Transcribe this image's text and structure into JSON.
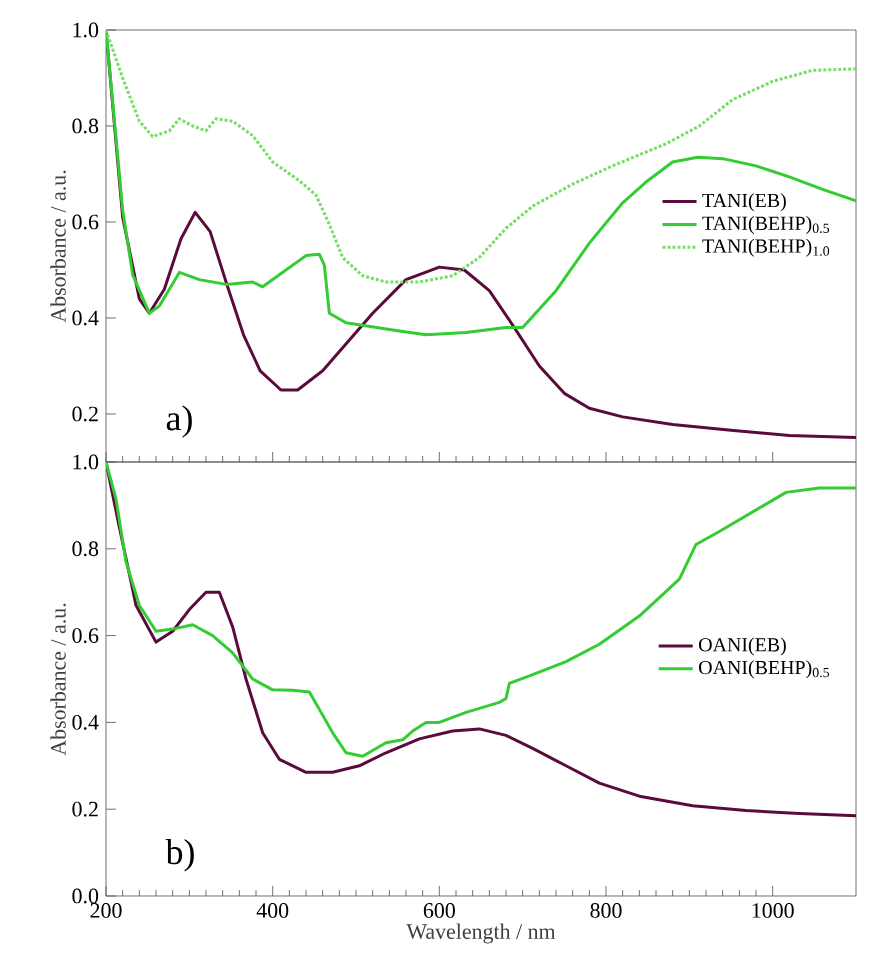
{
  "chart_data": [
    {
      "type": "line",
      "ylabel": "Absorbance / a.u.",
      "annotations": [
        "a)"
      ],
      "xlim": [
        200,
        1100
      ],
      "xticks": [
        200,
        400,
        600,
        800,
        1000
      ],
      "ylim": [
        0.1,
        1.0
      ],
      "yticks": [
        {
          "value": 0.2,
          "label": "0.2"
        },
        {
          "value": 0.4,
          "label": "0.4"
        },
        {
          "value": 0.6,
          "label": "0.6"
        },
        {
          "value": 0.8,
          "label": "0.8"
        },
        {
          "value": 1.0,
          "label": "1.0"
        }
      ],
      "tick_labels": "y",
      "legend": "right",
      "series": [
        {
          "name": "TANI(EB)",
          "color": "#5a0a3c",
          "line_style": "solid",
          "x": [
            200,
            220,
            240,
            252,
            270,
            290,
            307,
            325,
            345,
            365,
            385,
            410,
            430,
            460,
            490,
            520,
            560,
            600,
            630,
            660,
            690,
            720,
            750,
            780,
            820,
            880,
            950,
            1020,
            1100
          ],
          "values": [
            1.0,
            0.61,
            0.44,
            0.41,
            0.46,
            0.565,
            0.62,
            0.58,
            0.47,
            0.365,
            0.29,
            0.25,
            0.25,
            0.29,
            0.35,
            0.41,
            0.48,
            0.506,
            0.5,
            0.457,
            0.38,
            0.3,
            0.243,
            0.212,
            0.194,
            0.178,
            0.166,
            0.155,
            0.151
          ]
        },
        {
          "name": "TANI(BEHP)$_{0.5}$",
          "color": "#33cc33",
          "line_style": "solid",
          "x": [
            200,
            220,
            232,
            252,
            264,
            288,
            312,
            344,
            376,
            388,
            408,
            440,
            456,
            462,
            468,
            488,
            552,
            584,
            632,
            680,
            700,
            740,
            780,
            820,
            850,
            880,
            910,
            940,
            980,
            1020,
            1060,
            1100
          ],
          "values": [
            1.0,
            0.625,
            0.49,
            0.41,
            0.425,
            0.495,
            0.48,
            0.47,
            0.475,
            0.465,
            0.49,
            0.53,
            0.533,
            0.51,
            0.41,
            0.39,
            0.373,
            0.365,
            0.37,
            0.38,
            0.38,
            0.457,
            0.556,
            0.64,
            0.686,
            0.725,
            0.735,
            0.732,
            0.717,
            0.694,
            0.668,
            0.644
          ]
        },
        {
          "name": "TANI(BEHP)$_{1.0}$",
          "color": "#77dd66",
          "line_style": "dotted",
          "x": [
            200,
            220,
            240,
            256,
            276,
            288,
            304,
            320,
            332,
            352,
            376,
            400,
            432,
            452,
            468,
            484,
            508,
            536,
            576,
            616,
            648,
            680,
            712,
            760,
            808,
            872,
            912,
            952,
            1000,
            1048,
            1100
          ],
          "values": [
            1.0,
            0.9,
            0.81,
            0.778,
            0.79,
            0.815,
            0.8,
            0.79,
            0.815,
            0.81,
            0.78,
            0.725,
            0.686,
            0.656,
            0.595,
            0.526,
            0.488,
            0.475,
            0.475,
            0.488,
            0.526,
            0.587,
            0.633,
            0.679,
            0.717,
            0.763,
            0.8,
            0.855,
            0.893,
            0.916,
            0.919
          ]
        }
      ]
    },
    {
      "type": "line",
      "xlabel": "Wavelength / nm",
      "ylabel": "Absorbance / a.u.",
      "annotations": [
        "b)"
      ],
      "xlim": [
        200,
        1100
      ],
      "xticks": [
        200,
        400,
        600,
        800,
        1000
      ],
      "ylim": [
        0.0,
        1.0
      ],
      "yticks": [
        {
          "value": 0.0,
          "label": "0.0"
        },
        {
          "value": 0.2,
          "label": "0.2"
        },
        {
          "value": 0.4,
          "label": "0.4"
        },
        {
          "value": 0.6,
          "label": "0.6"
        },
        {
          "value": 0.8,
          "label": "0.8"
        },
        {
          "value": 1.0,
          "label": "1.0"
        }
      ],
      "legend": "right",
      "series": [
        {
          "name": "OANI(EB)",
          "color": "#5a0a3c",
          "line_style": "solid",
          "x": [
            200,
            216,
            236,
            260,
            280,
            300,
            320,
            336,
            352,
            368,
            388,
            408,
            440,
            472,
            504,
            536,
            576,
            616,
            648,
            680,
            712,
            752,
            792,
            840,
            904,
            968,
            1032,
            1100
          ],
          "values": [
            1.0,
            0.85,
            0.67,
            0.585,
            0.61,
            0.66,
            0.7,
            0.7,
            0.62,
            0.5,
            0.376,
            0.315,
            0.285,
            0.285,
            0.3,
            0.33,
            0.362,
            0.38,
            0.385,
            0.37,
            0.34,
            0.3,
            0.26,
            0.23,
            0.208,
            0.197,
            0.19,
            0.185
          ]
        },
        {
          "name": "OANI(BEHP)$_{0.5}$",
          "color": "#33cc33",
          "line_style": "solid",
          "x": [
            200,
            212,
            224,
            240,
            260,
            280,
            304,
            328,
            352,
            376,
            400,
            424,
            444,
            456,
            472,
            488,
            508,
            536,
            556,
            568,
            584,
            600,
            632,
            672,
            680,
            684,
            712,
            752,
            792,
            840,
            888,
            908,
            936,
            976,
            1016,
            1056,
            1100
          ],
          "values": [
            1.0,
            0.915,
            0.77,
            0.67,
            0.61,
            0.615,
            0.625,
            0.6,
            0.56,
            0.5,
            0.475,
            0.474,
            0.47,
            0.43,
            0.376,
            0.33,
            0.322,
            0.353,
            0.36,
            0.38,
            0.4,
            0.4,
            0.423,
            0.446,
            0.455,
            0.49,
            0.51,
            0.54,
            0.58,
            0.645,
            0.73,
            0.81,
            0.84,
            0.885,
            0.93,
            0.94,
            0.94
          ]
        }
      ]
    }
  ]
}
